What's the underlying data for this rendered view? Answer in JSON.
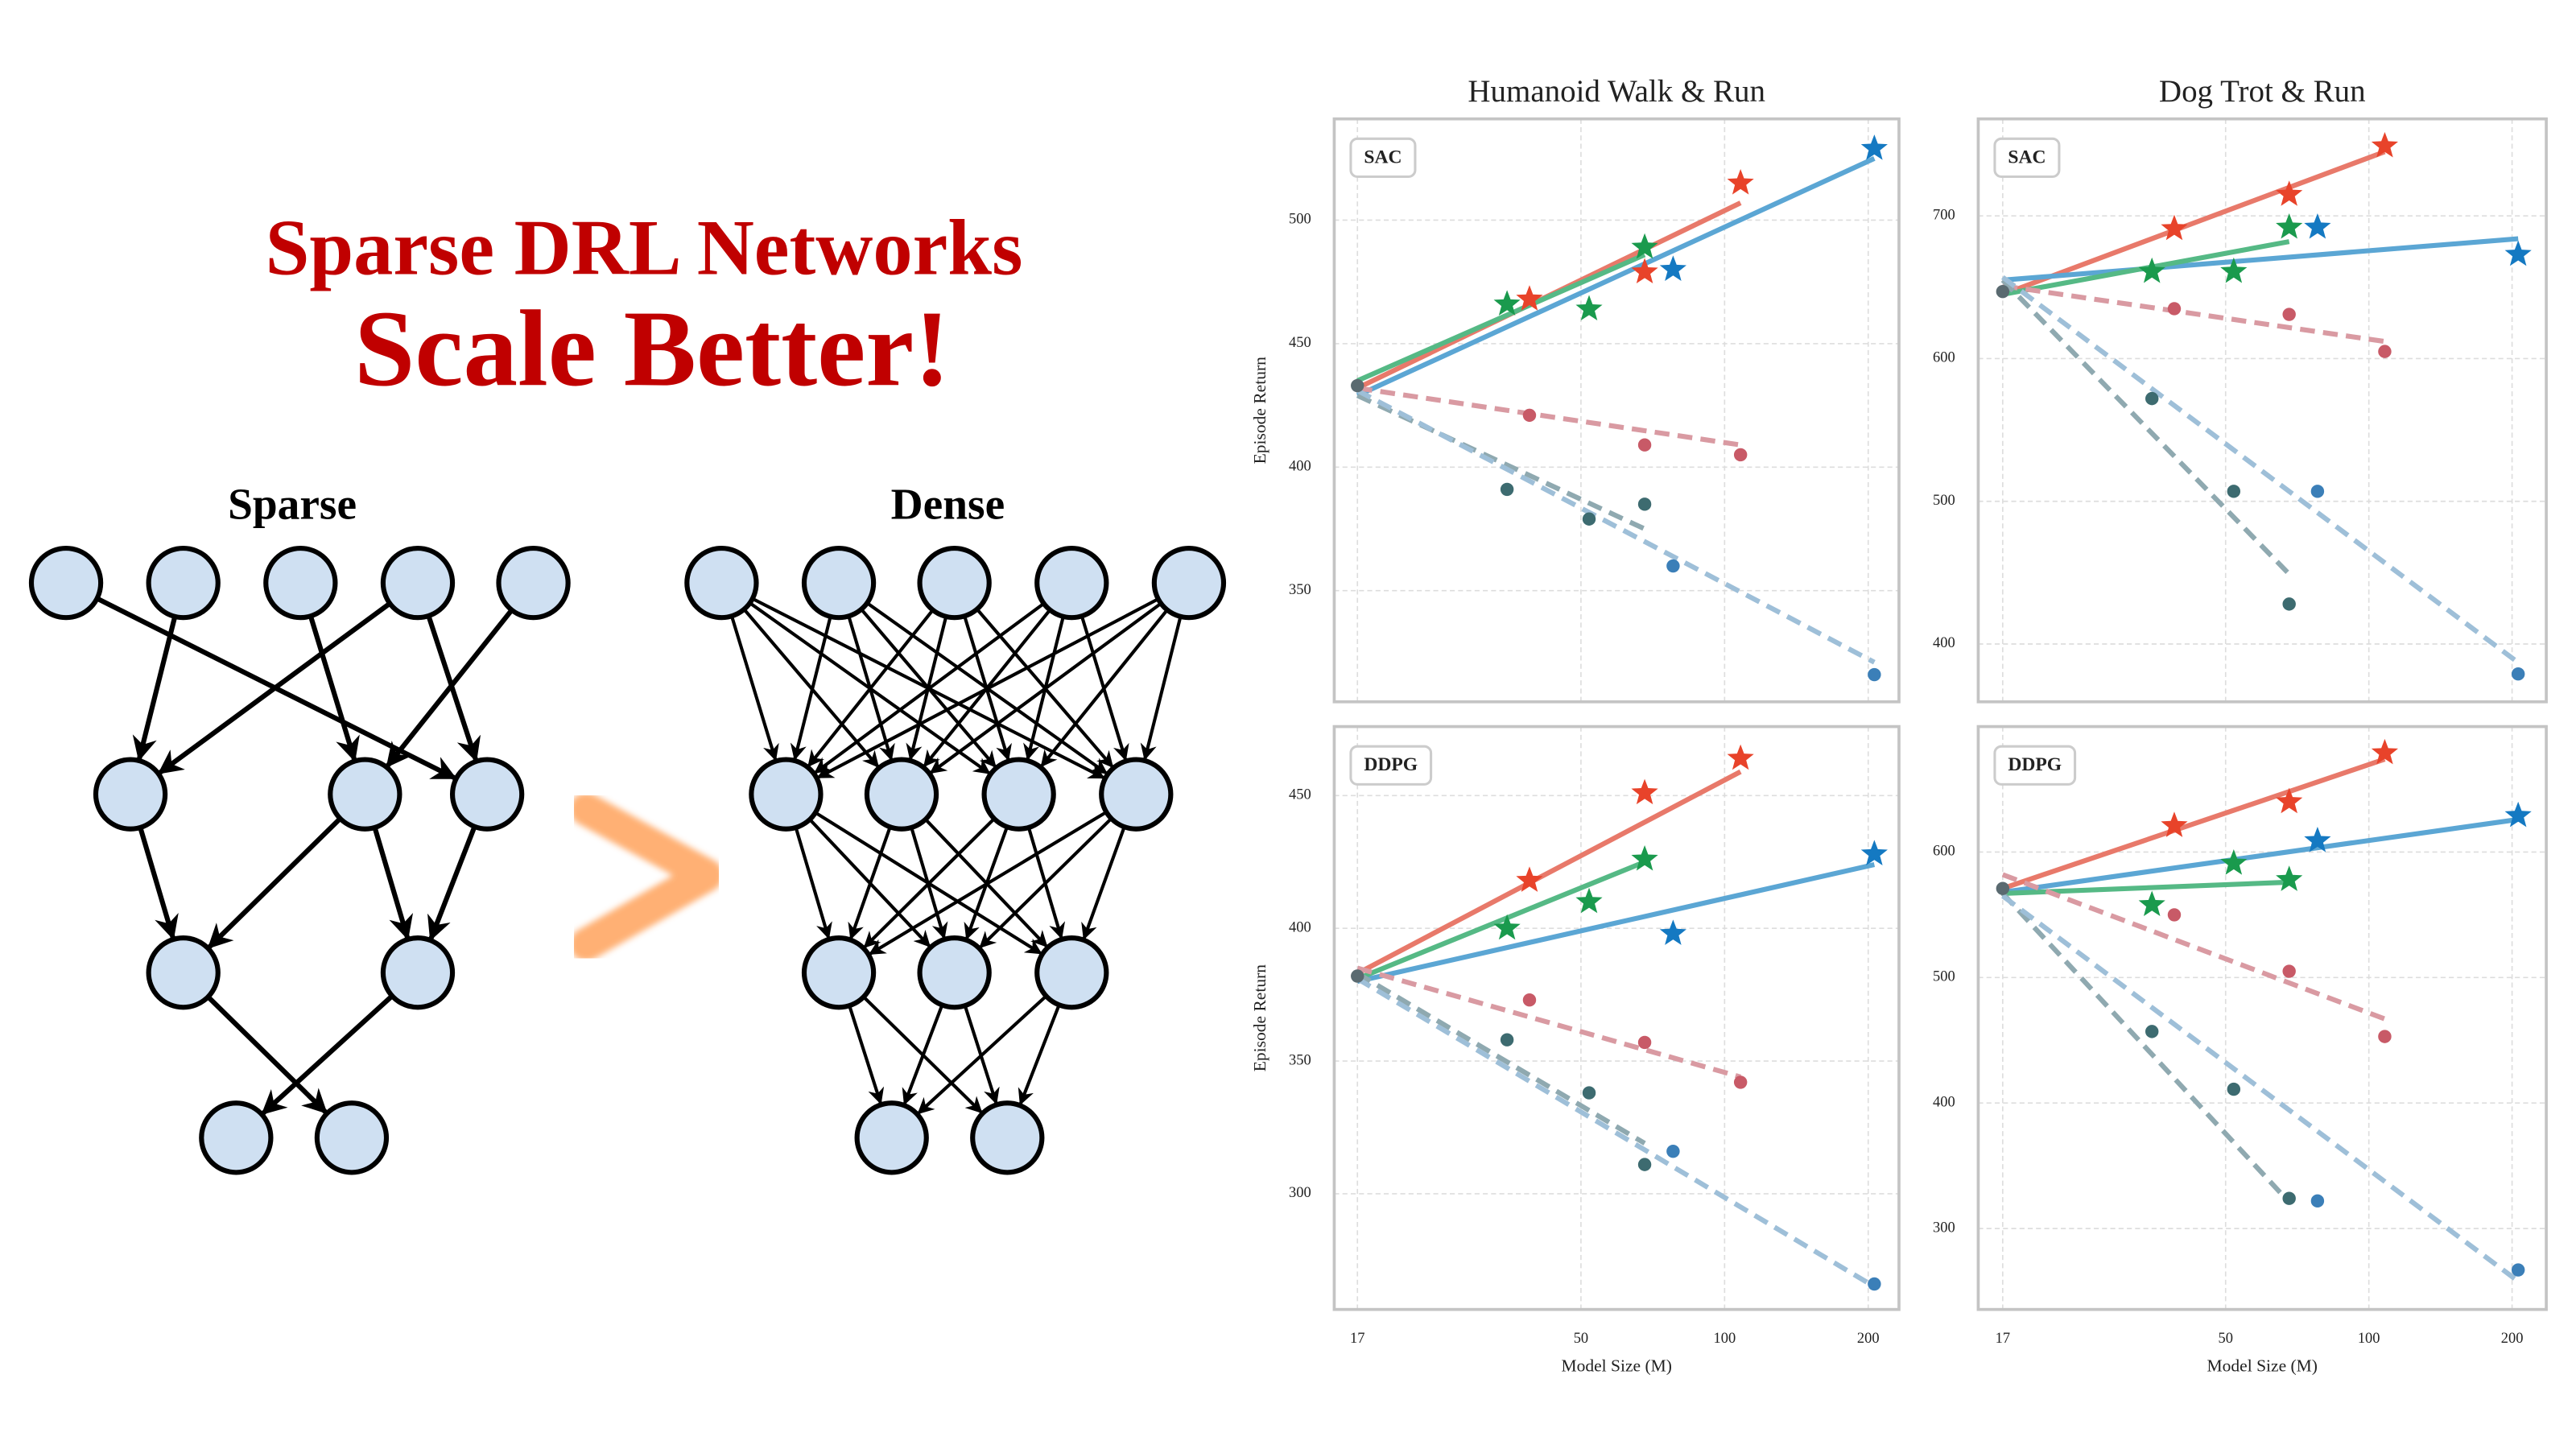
{
  "header": {
    "line1": "Sparse DRL Networks",
    "line2": "Scale Better!"
  },
  "diagram": {
    "left_label": "Sparse",
    "right_label": "Dense"
  },
  "chart_data": [
    {
      "type": "scatter",
      "title": "Humanoid Walk & Run",
      "annotation": "SAC",
      "ylabel": "Episode Return",
      "xscale": "log",
      "xlim": [
        15.2,
        232
      ],
      "ylim": [
        305,
        541
      ],
      "xticks": [
        17,
        50,
        100,
        200
      ],
      "show_xtick_labels": false,
      "yticks": [
        350,
        400,
        450,
        500
      ],
      "grid": true,
      "series": [
        {
          "color": "#e8796a",
          "marker": "none",
          "line": "solid",
          "x": [
            17,
            108
          ],
          "values": [
            432,
            507
          ]
        },
        {
          "color": "#5ba6d4",
          "marker": "none",
          "line": "solid",
          "x": [
            17,
            206
          ],
          "values": [
            429,
            525
          ]
        },
        {
          "color": "#55b985",
          "marker": "none",
          "line": "solid",
          "x": [
            17,
            68
          ],
          "values": [
            435,
            486
          ]
        },
        {
          "color": "#d99aa2",
          "marker": "none",
          "line": "dashed",
          "x": [
            17,
            108
          ],
          "values": [
            432,
            409
          ]
        },
        {
          "color": "#8fa9b0",
          "marker": "none",
          "line": "dashed",
          "x": [
            17,
            68
          ],
          "values": [
            429,
            375
          ]
        },
        {
          "color": "#9ebfd8",
          "marker": "none",
          "line": "dashed",
          "x": [
            17,
            206
          ],
          "values": [
            431,
            321
          ]
        },
        {
          "color": "#5a6a70",
          "marker": "dot",
          "line": "none",
          "x": [
            17
          ],
          "values": [
            433
          ]
        },
        {
          "color": "#c85a67",
          "marker": "dot",
          "line": "none",
          "x": [
            39,
            68,
            108
          ],
          "values": [
            421,
            409,
            405
          ]
        },
        {
          "color": "#3d6b70",
          "marker": "dot",
          "line": "none",
          "x": [
            35,
            52,
            68
          ],
          "values": [
            391,
            379,
            385
          ]
        },
        {
          "color": "#3b7fb8",
          "marker": "dot",
          "line": "none",
          "x": [
            78,
            206
          ],
          "values": [
            360,
            316
          ]
        },
        {
          "color": "#e8432a",
          "marker": "star",
          "line": "none",
          "x": [
            39,
            68,
            108
          ],
          "values": [
            468,
            479,
            515
          ]
        },
        {
          "color": "#1a9a4d",
          "marker": "star",
          "line": "none",
          "x": [
            35,
            52,
            68
          ],
          "values": [
            466,
            464,
            489
          ]
        },
        {
          "color": "#1479c2",
          "marker": "star",
          "line": "none",
          "x": [
            78,
            206
          ],
          "values": [
            480,
            529
          ]
        }
      ]
    },
    {
      "type": "scatter",
      "title": "Dog Trot & Run",
      "annotation": "SAC",
      "xscale": "log",
      "xlim": [
        15.1,
        236
      ],
      "ylim": [
        359.5,
        768
      ],
      "xticks": [
        17,
        50,
        100,
        200
      ],
      "show_xtick_labels": false,
      "yticks": [
        400,
        500,
        600,
        700
      ],
      "grid": true,
      "series": [
        {
          "color": "#e8796a",
          "marker": "none",
          "line": "solid",
          "x": [
            17,
            108
          ],
          "values": [
            645,
            745
          ]
        },
        {
          "color": "#5ba6d4",
          "marker": "none",
          "line": "solid",
          "x": [
            17,
            206
          ],
          "values": [
            655,
            684
          ]
        },
        {
          "color": "#55b985",
          "marker": "none",
          "line": "solid",
          "x": [
            17,
            68
          ],
          "values": [
            645,
            682
          ]
        },
        {
          "color": "#d99aa2",
          "marker": "none",
          "line": "dashed",
          "x": [
            17,
            108
          ],
          "values": [
            651,
            612
          ]
        },
        {
          "color": "#8fa9b0",
          "marker": "none",
          "line": "dashed",
          "x": [
            17,
            68
          ],
          "values": [
            655,
            449
          ]
        },
        {
          "color": "#9ebfd8",
          "marker": "none",
          "line": "dashed",
          "x": [
            17,
            206
          ],
          "values": [
            657,
            387
          ]
        },
        {
          "color": "#5a6a70",
          "marker": "dot",
          "line": "none",
          "x": [
            17
          ],
          "values": [
            647
          ]
        },
        {
          "color": "#c85a67",
          "marker": "dot",
          "line": "none",
          "x": [
            39,
            68,
            108
          ],
          "values": [
            635,
            631,
            605
          ]
        },
        {
          "color": "#3d6b70",
          "marker": "dot",
          "line": "none",
          "x": [
            35,
            52,
            68
          ],
          "values": [
            572,
            507,
            428
          ]
        },
        {
          "color": "#3b7fb8",
          "marker": "dot",
          "line": "none",
          "x": [
            78,
            206
          ],
          "values": [
            507,
            379
          ]
        },
        {
          "color": "#e8432a",
          "marker": "star",
          "line": "none",
          "x": [
            39,
            68,
            108
          ],
          "values": [
            691,
            715,
            749
          ]
        },
        {
          "color": "#1a9a4d",
          "marker": "star",
          "line": "none",
          "x": [
            35,
            52,
            68
          ],
          "values": [
            661,
            661,
            692
          ]
        },
        {
          "color": "#1479c2",
          "marker": "star",
          "line": "none",
          "x": [
            78,
            206
          ],
          "values": [
            692,
            673
          ]
        }
      ]
    },
    {
      "type": "scatter",
      "annotation": "DDPG",
      "ylabel": "Episode Return",
      "xlabel": "Model Size (M)",
      "xscale": "log",
      "xlim": [
        15.2,
        232
      ],
      "ylim": [
        256.4,
        476
      ],
      "xticks": [
        17,
        50,
        100,
        200
      ],
      "show_xtick_labels": true,
      "yticks": [
        300,
        350,
        400,
        450
      ],
      "grid": true,
      "series": [
        {
          "color": "#e8796a",
          "marker": "none",
          "line": "solid",
          "x": [
            17,
            108
          ],
          "values": [
            383,
            459
          ]
        },
        {
          "color": "#5ba6d4",
          "marker": "none",
          "line": "solid",
          "x": [
            17,
            206
          ],
          "values": [
            380,
            424
          ]
        },
        {
          "color": "#55b985",
          "marker": "none",
          "line": "solid",
          "x": [
            17,
            68
          ],
          "values": [
            381,
            425
          ]
        },
        {
          "color": "#d99aa2",
          "marker": "none",
          "line": "dashed",
          "x": [
            17,
            108
          ],
          "values": [
            385,
            344
          ]
        },
        {
          "color": "#8fa9b0",
          "marker": "none",
          "line": "dashed",
          "x": [
            17,
            68
          ],
          "values": [
            383,
            319
          ]
        },
        {
          "color": "#9ebfd8",
          "marker": "none",
          "line": "dashed",
          "x": [
            17,
            206
          ],
          "values": [
            381,
            265
          ]
        },
        {
          "color": "#5a6a70",
          "marker": "dot",
          "line": "none",
          "x": [
            17
          ],
          "values": [
            382
          ]
        },
        {
          "color": "#c85a67",
          "marker": "dot",
          "line": "none",
          "x": [
            39,
            68,
            108
          ],
          "values": [
            373,
            357,
            342
          ]
        },
        {
          "color": "#3d6b70",
          "marker": "dot",
          "line": "none",
          "x": [
            35,
            52,
            68
          ],
          "values": [
            358,
            338,
            311
          ]
        },
        {
          "color": "#3b7fb8",
          "marker": "dot",
          "line": "none",
          "x": [
            78,
            206
          ],
          "values": [
            316,
            266
          ]
        },
        {
          "color": "#e8432a",
          "marker": "star",
          "line": "none",
          "x": [
            39,
            68,
            108
          ],
          "values": [
            418,
            451,
            464
          ]
        },
        {
          "color": "#1a9a4d",
          "marker": "star",
          "line": "none",
          "x": [
            35,
            52,
            68
          ],
          "values": [
            400,
            410,
            426
          ]
        },
        {
          "color": "#1479c2",
          "marker": "star",
          "line": "none",
          "x": [
            78,
            206
          ],
          "values": [
            398,
            428
          ]
        }
      ]
    },
    {
      "type": "scatter",
      "annotation": "DDPG",
      "xlabel": "Model Size (M)",
      "xscale": "log",
      "xlim": [
        15.1,
        236
      ],
      "ylim": [
        235.5,
        700
      ],
      "xticks": [
        17,
        50,
        100,
        200
      ],
      "show_xtick_labels": true,
      "yticks": [
        300,
        400,
        500,
        600
      ],
      "grid": true,
      "series": [
        {
          "color": "#e8796a",
          "marker": "none",
          "line": "solid",
          "x": [
            17,
            108
          ],
          "values": [
            571,
            674
          ]
        },
        {
          "color": "#5ba6d4",
          "marker": "none",
          "line": "solid",
          "x": [
            17,
            206
          ],
          "values": [
            568,
            626
          ]
        },
        {
          "color": "#55b985",
          "marker": "none",
          "line": "solid",
          "x": [
            17,
            68
          ],
          "values": [
            567,
            576
          ]
        },
        {
          "color": "#d99aa2",
          "marker": "none",
          "line": "dashed",
          "x": [
            17,
            108
          ],
          "values": [
            582,
            467
          ]
        },
        {
          "color": "#8fa9b0",
          "marker": "none",
          "line": "dashed",
          "x": [
            17,
            68
          ],
          "values": [
            567,
            321
          ]
        },
        {
          "color": "#9ebfd8",
          "marker": "none",
          "line": "dashed",
          "x": [
            17,
            206
          ],
          "values": [
            565,
            258
          ]
        },
        {
          "color": "#5a6a70",
          "marker": "dot",
          "line": "none",
          "x": [
            17
          ],
          "values": [
            571
          ]
        },
        {
          "color": "#c85a67",
          "marker": "dot",
          "line": "none",
          "x": [
            39,
            68,
            108
          ],
          "values": [
            550,
            505,
            453
          ]
        },
        {
          "color": "#3d6b70",
          "marker": "dot",
          "line": "none",
          "x": [
            35,
            52,
            68
          ],
          "values": [
            457,
            411,
            324
          ]
        },
        {
          "color": "#3b7fb8",
          "marker": "dot",
          "line": "none",
          "x": [
            78,
            206
          ],
          "values": [
            322,
            267
          ]
        },
        {
          "color": "#e8432a",
          "marker": "star",
          "line": "none",
          "x": [
            39,
            68,
            108
          ],
          "values": [
            621,
            640,
            679
          ]
        },
        {
          "color": "#1a9a4d",
          "marker": "star",
          "line": "none",
          "x": [
            35,
            52,
            68
          ],
          "values": [
            558,
            591,
            578
          ]
        },
        {
          "color": "#1479c2",
          "marker": "star",
          "line": "none",
          "x": [
            78,
            206
          ],
          "values": [
            609,
            629
          ]
        }
      ]
    }
  ]
}
